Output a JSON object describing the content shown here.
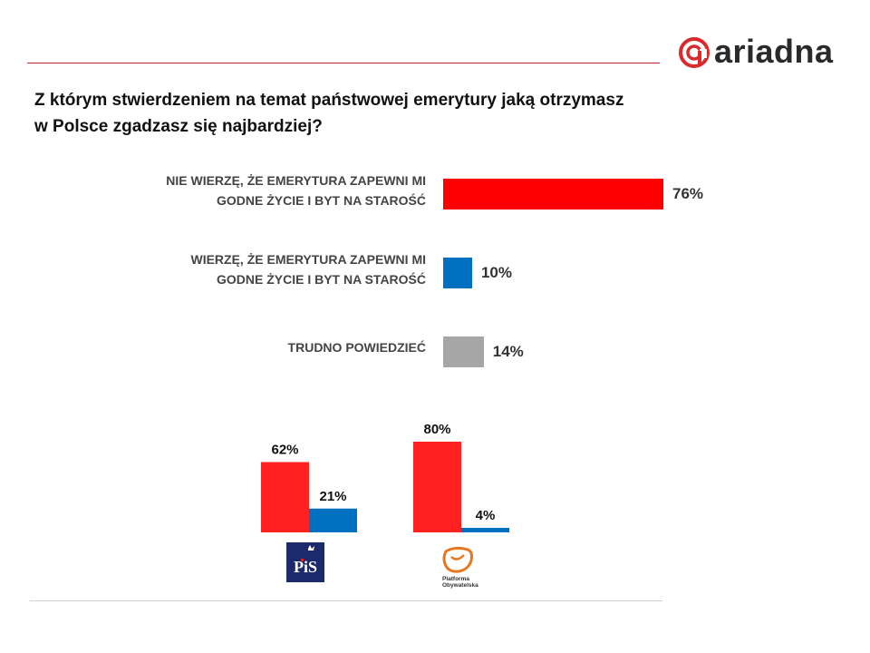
{
  "brand": {
    "name": "ariadna",
    "accent": "#d92b2b"
  },
  "question": {
    "line1": "Z którym stwierdzeniem na temat państwowej emerytury jaką otrzymasz",
    "line2": "w Polsce zgadzasz się najbardziej?"
  },
  "chart_data": [
    {
      "type": "bar",
      "orientation": "horizontal",
      "categories": [
        [
          "NIE WIERZĘ, ŻE EMERYTURA ZAPEWNI MI",
          "GODNE ŻYCIE I BYT NA STAROŚĆ"
        ],
        [
          "WIERZĘ, ŻE EMERYTURA ZAPEWNI MI",
          "GODNE ŻYCIE I BYT NA STAROŚĆ"
        ],
        [
          "TRUDNO POWIEDZIEĆ"
        ]
      ],
      "values": [
        76,
        10,
        14
      ],
      "value_labels": [
        "76%",
        "10%",
        "14%"
      ],
      "colors": [
        "#ff0000",
        "#0070c0",
        "#a6a6a6"
      ]
    },
    {
      "type": "bar",
      "orientation": "vertical",
      "categories": [
        "PiS",
        "Platforma Obywatelska"
      ],
      "series": [
        {
          "values": [
            62,
            80
          ],
          "value_labels": [
            "62%",
            "80%"
          ],
          "color": "#ff2020"
        },
        {
          "values": [
            21,
            4
          ],
          "value_labels": [
            "21%",
            "4%"
          ],
          "color": "#0070c0"
        }
      ]
    }
  ],
  "party_logos": {
    "pis": {
      "text": "PiS",
      "bg": "#1b2a6b"
    },
    "po": {
      "line1": "Platforma",
      "line2": "Obywatelska",
      "color": "#e87722"
    }
  }
}
